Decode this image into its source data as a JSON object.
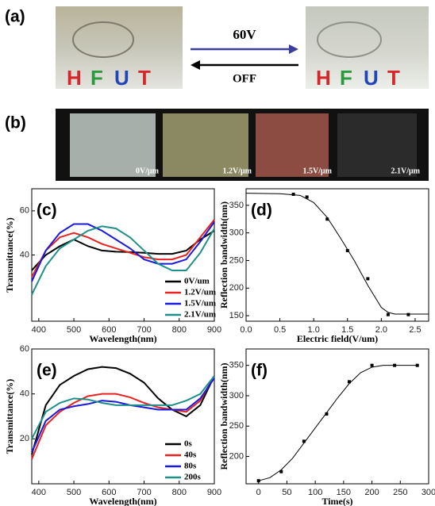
{
  "figure": {
    "a": {
      "label": "(a)",
      "top_arrow": "60V",
      "bottom_arrow": "OFF",
      "letters": [
        "H",
        "F",
        "U",
        "T"
      ]
    },
    "b": {
      "label": "(b)",
      "photos": [
        "0V/μm",
        "1.2V/μm",
        "1.5V/μm",
        "2.1V/μm"
      ]
    }
  },
  "chart_data": [
    {
      "type": "line",
      "label": "(c)",
      "xlabel": "Wavelength(nm)",
      "ylabel": "Transmittance(%)",
      "x": [
        380,
        420,
        460,
        500,
        540,
        580,
        620,
        660,
        700,
        740,
        780,
        820,
        860,
        900
      ],
      "xlim": [
        380,
        900
      ],
      "xticks": [
        400,
        500,
        600,
        700,
        800,
        900
      ],
      "ylim": [
        10,
        70
      ],
      "yticks": [
        40,
        60
      ],
      "legend": "lower right",
      "series": [
        {
          "name": "0V/um",
          "color": "#000000",
          "values": [
            33,
            40,
            44,
            47,
            44,
            42,
            41.5,
            41.3,
            41,
            40.5,
            40.5,
            42,
            47,
            51
          ]
        },
        {
          "name": "1.2V/um",
          "color": "#e8231f",
          "values": [
            30,
            42,
            48,
            50,
            48,
            45,
            43,
            41,
            39,
            38,
            38,
            40,
            48,
            56
          ]
        },
        {
          "name": "1.5V/um",
          "color": "#1a1adc",
          "values": [
            28,
            42,
            50,
            54,
            54,
            51,
            47,
            43,
            38,
            36,
            36,
            38,
            46,
            55
          ]
        },
        {
          "name": "2.1V/um",
          "color": "#1f8f8a",
          "values": [
            22,
            35,
            43,
            47,
            51,
            53,
            52,
            48,
            42,
            36,
            33,
            33,
            41,
            52
          ]
        }
      ]
    },
    {
      "type": "scatter",
      "label": "(d)",
      "xlabel": "Electric field(V/um)",
      "ylabel": "Reflection bandwidth(nm)",
      "xlim": [
        0,
        2.7
      ],
      "xticks": [
        {
          "value": 0,
          "label": "0.0"
        },
        0.5,
        {
          "value": 1,
          "label": "1.0"
        },
        1.5,
        {
          "value": 2,
          "label": "2.0"
        },
        2.5
      ],
      "ylim": [
        140,
        380
      ],
      "yticks": [
        150,
        200,
        250,
        300,
        350
      ],
      "points": {
        "x": [
          0.7,
          0.9,
          1.2,
          1.5,
          1.8,
          2.1,
          2.4
        ],
        "values": [
          370,
          365,
          325,
          268,
          217,
          152,
          152
        ]
      },
      "fit": {
        "x": [
          0,
          0.5,
          0.8,
          1.0,
          1.2,
          1.4,
          1.6,
          1.8,
          2.0,
          2.1,
          2.2,
          2.7
        ],
        "values": [
          372,
          371,
          368,
          355,
          328,
          290,
          250,
          205,
          165,
          156,
          153,
          153
        ]
      }
    },
    {
      "type": "line",
      "label": "(e)",
      "xlabel": "Wavelength(nm)",
      "ylabel": "Transmittance(%)",
      "x": [
        380,
        420,
        460,
        500,
        540,
        580,
        620,
        660,
        700,
        740,
        780,
        820,
        860,
        900
      ],
      "xlim": [
        380,
        900
      ],
      "xticks": [
        400,
        500,
        600,
        700,
        800,
        900
      ],
      "ylim": [
        0,
        60
      ],
      "yticks": [
        20,
        40,
        60
      ],
      "legend": "lower right",
      "series": [
        {
          "name": "0s",
          "color": "#000000",
          "values": [
            13,
            35,
            44,
            48,
            51,
            52,
            51.5,
            49,
            45,
            38,
            33,
            30,
            35,
            48
          ]
        },
        {
          "name": "40s",
          "color": "#e8231f",
          "values": [
            11,
            26,
            32,
            36,
            39,
            40,
            40,
            38.5,
            36,
            34,
            33,
            32,
            37,
            48
          ]
        },
        {
          "name": "80s",
          "color": "#1a1adc",
          "values": [
            14,
            28,
            33,
            34.5,
            35.5,
            37,
            36.5,
            35,
            34,
            33,
            33,
            33,
            38,
            47
          ]
        },
        {
          "name": "200s",
          "color": "#1f8f8a",
          "values": [
            20,
            32,
            36,
            38,
            37.5,
            36,
            35,
            35,
            35,
            35,
            35,
            37,
            40,
            48
          ]
        }
      ]
    },
    {
      "type": "scatter",
      "label": "(f)",
      "xlabel": "Time(s)",
      "ylabel": "Reflection bandwidth(nm)",
      "xlim": [
        -22,
        300
      ],
      "xticks": [
        0,
        50,
        100,
        150,
        200,
        250,
        300
      ],
      "ylim": [
        155,
        377
      ],
      "yticks": [
        200,
        250,
        300,
        350
      ],
      "points": {
        "x": [
          0,
          40,
          80,
          120,
          160,
          200,
          240,
          280
        ],
        "values": [
          160,
          175,
          225,
          270,
          323,
          350,
          350,
          350
        ]
      },
      "fit": {
        "x": [
          0,
          20,
          40,
          60,
          80,
          100,
          120,
          140,
          160,
          180,
          200,
          220,
          280
        ],
        "values": [
          160,
          165,
          178,
          197,
          222,
          247,
          272,
          297,
          320,
          338,
          347,
          350,
          350
        ]
      }
    }
  ]
}
